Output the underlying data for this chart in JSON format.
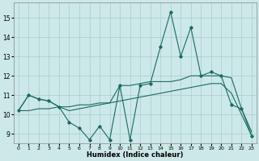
{
  "xlabel": "Humidex (Indice chaleur)",
  "background_color": "#cce8e8",
  "grid_color": "#aacccc",
  "line_color": "#1a6b60",
  "x_values": [
    0,
    1,
    2,
    3,
    4,
    5,
    6,
    7,
    8,
    9,
    10,
    11,
    12,
    13,
    14,
    15,
    16,
    17,
    18,
    19,
    20,
    21,
    22,
    23
  ],
  "series_main": [
    10.2,
    11.0,
    10.8,
    10.7,
    10.4,
    9.6,
    9.3,
    8.7,
    9.4,
    8.7,
    11.5,
    8.7,
    11.5,
    11.6,
    13.5,
    15.3,
    13.0,
    14.5,
    12.0,
    12.2,
    12.0,
    10.5,
    10.3,
    8.9
  ],
  "series_smooth": [
    10.2,
    11.0,
    10.8,
    10.7,
    10.4,
    10.2,
    10.3,
    10.4,
    10.5,
    10.6,
    11.5,
    11.5,
    11.6,
    11.7,
    11.7,
    11.7,
    11.8,
    12.0,
    12.0,
    12.0,
    12.0,
    11.9,
    10.3,
    9.1
  ],
  "series_trend": [
    10.2,
    10.2,
    10.3,
    10.3,
    10.4,
    10.4,
    10.5,
    10.5,
    10.6,
    10.6,
    10.7,
    10.8,
    10.9,
    11.0,
    11.1,
    11.2,
    11.3,
    11.4,
    11.5,
    11.6,
    11.6,
    11.1,
    10.0,
    8.9
  ],
  "ylim": [
    8.5,
    15.8
  ],
  "xlim": [
    -0.5,
    23.5
  ],
  "yticks": [
    9,
    10,
    11,
    12,
    13,
    14,
    15
  ],
  "xticks": [
    0,
    1,
    2,
    3,
    4,
    5,
    6,
    7,
    8,
    9,
    10,
    11,
    12,
    13,
    14,
    15,
    16,
    17,
    18,
    19,
    20,
    21,
    22,
    23
  ]
}
